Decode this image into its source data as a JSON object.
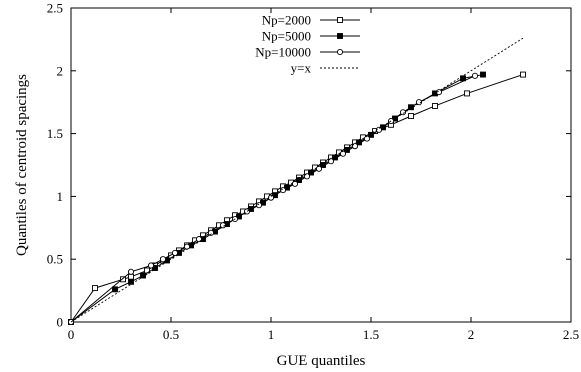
{
  "chart_data": {
    "type": "line",
    "xlabel": "GUE quantiles",
    "ylabel": "Quantiles of centroid spacings",
    "xlim": [
      0,
      2.5
    ],
    "ylim": [
      0,
      2.5
    ],
    "xticks": [
      "0",
      "0.5",
      "1",
      "1.5",
      "2",
      "2.5"
    ],
    "yticks": [
      "0",
      "0.5",
      "1",
      "1.5",
      "2",
      "2.5"
    ],
    "grid": false,
    "legend_position": "top-right",
    "series": [
      {
        "name": "Np=2000",
        "marker": "open-square",
        "x": [
          0,
          0.12,
          0.26,
          0.3,
          0.38,
          0.42,
          0.46,
          0.5,
          0.54,
          0.58,
          0.62,
          0.66,
          0.7,
          0.74,
          0.78,
          0.82,
          0.86,
          0.9,
          0.94,
          0.98,
          1.02,
          1.06,
          1.1,
          1.14,
          1.18,
          1.22,
          1.26,
          1.3,
          1.34,
          1.38,
          1.42,
          1.46,
          1.52,
          1.6,
          1.7,
          1.82,
          1.98,
          2.26
        ],
        "y": [
          0,
          0.27,
          0.34,
          0.36,
          0.41,
          0.45,
          0.49,
          0.53,
          0.57,
          0.61,
          0.65,
          0.69,
          0.73,
          0.77,
          0.81,
          0.85,
          0.88,
          0.92,
          0.96,
          1.0,
          1.04,
          1.08,
          1.11,
          1.15,
          1.19,
          1.23,
          1.27,
          1.31,
          1.35,
          1.39,
          1.43,
          1.47,
          1.52,
          1.57,
          1.64,
          1.72,
          1.82,
          1.97
        ]
      },
      {
        "name": "Np=5000",
        "marker": "filled-square",
        "x": [
          0,
          0.22,
          0.3,
          0.36,
          0.42,
          0.48,
          0.54,
          0.6,
          0.66,
          0.72,
          0.78,
          0.84,
          0.9,
          0.96,
          1.02,
          1.08,
          1.14,
          1.2,
          1.26,
          1.32,
          1.38,
          1.44,
          1.5,
          1.56,
          1.62,
          1.7,
          1.82,
          1.96,
          2.06
        ],
        "y": [
          0,
          0.26,
          0.32,
          0.37,
          0.43,
          0.49,
          0.55,
          0.61,
          0.66,
          0.72,
          0.78,
          0.84,
          0.9,
          0.95,
          1.01,
          1.07,
          1.13,
          1.19,
          1.25,
          1.31,
          1.37,
          1.43,
          1.49,
          1.55,
          1.62,
          1.71,
          1.82,
          1.94,
          1.97
        ]
      },
      {
        "name": "Np=10000",
        "marker": "open-circle",
        "x": [
          0,
          0.3,
          0.4,
          0.46,
          0.52,
          0.58,
          0.64,
          0.7,
          0.76,
          0.82,
          0.88,
          0.94,
          1.0,
          1.06,
          1.12,
          1.18,
          1.24,
          1.3,
          1.36,
          1.42,
          1.48,
          1.54,
          1.6,
          1.66,
          1.74,
          1.84,
          2.02
        ],
        "y": [
          0,
          0.4,
          0.45,
          0.5,
          0.55,
          0.6,
          0.66,
          0.71,
          0.77,
          0.82,
          0.88,
          0.93,
          0.99,
          1.05,
          1.1,
          1.16,
          1.22,
          1.28,
          1.34,
          1.4,
          1.46,
          1.53,
          1.6,
          1.67,
          1.75,
          1.83,
          1.96
        ]
      },
      {
        "name": "y=x",
        "marker": "none",
        "dashed": true,
        "x": [
          0,
          2.26
        ],
        "y": [
          0,
          2.26
        ]
      }
    ]
  }
}
